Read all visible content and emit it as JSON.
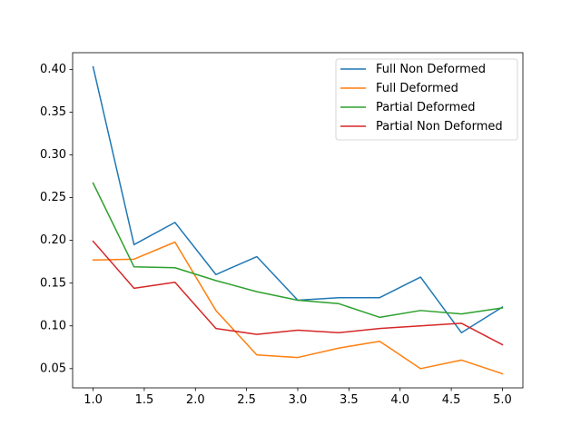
{
  "chart_data": {
    "type": "line",
    "title": "",
    "xlabel": "",
    "ylabel": "",
    "x": [
      1.0,
      1.4,
      1.8,
      2.2,
      2.6,
      3.0,
      3.4,
      3.8,
      4.2,
      4.6,
      5.0
    ],
    "xlim": [
      0.8,
      5.2
    ],
    "ylim": [
      0.0275,
      0.4195
    ],
    "xticks": [
      1.0,
      1.5,
      2.0,
      2.5,
      3.0,
      3.5,
      4.0,
      4.5,
      5.0
    ],
    "xtick_labels": [
      "1.0",
      "1.5",
      "2.0",
      "2.5",
      "3.0",
      "3.5",
      "4.0",
      "4.5",
      "5.0"
    ],
    "yticks": [
      0.05,
      0.1,
      0.15,
      0.2,
      0.25,
      0.3,
      0.35,
      0.4
    ],
    "ytick_labels": [
      "0.05",
      "0.10",
      "0.15",
      "0.20",
      "0.25",
      "0.30",
      "0.35",
      "0.40"
    ],
    "grid": false,
    "legend_position": "top-right",
    "series": [
      {
        "name": "Full Non Deformed",
        "color": "#1f77b4",
        "values": [
          0.403,
          0.195,
          0.221,
          0.16,
          0.181,
          0.13,
          0.133,
          0.133,
          0.157,
          0.092,
          0.122
        ]
      },
      {
        "name": "Full Deformed",
        "color": "#ff7f0e",
        "values": [
          0.177,
          0.178,
          0.198,
          0.118,
          0.066,
          0.063,
          0.074,
          0.082,
          0.05,
          0.06,
          0.044
        ]
      },
      {
        "name": "Partial Deformed",
        "color": "#2ca02c",
        "values": [
          0.267,
          0.169,
          0.168,
          0.153,
          0.14,
          0.13,
          0.126,
          0.11,
          0.118,
          0.114,
          0.121
        ]
      },
      {
        "name": "Partial Non Deformed",
        "color": "#d62728",
        "values": [
          0.199,
          0.144,
          0.151,
          0.097,
          0.09,
          0.095,
          0.092,
          0.097,
          0.1,
          0.103,
          0.078
        ]
      }
    ]
  }
}
